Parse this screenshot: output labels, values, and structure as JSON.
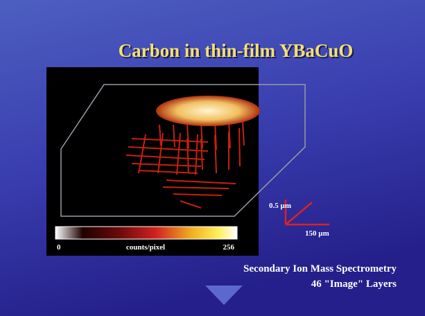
{
  "title": "Carbon in thin-film YBaCuO",
  "image": {
    "colorbar": {
      "min": "0",
      "label": "counts/pixel",
      "max": "256"
    },
    "scale": {
      "vertical": "0.5 µm",
      "horizontal": "150 µm"
    }
  },
  "caption": {
    "line1": "Secondary Ion Mass Spectrometry",
    "line2": "46 \"Image\" Layers"
  }
}
